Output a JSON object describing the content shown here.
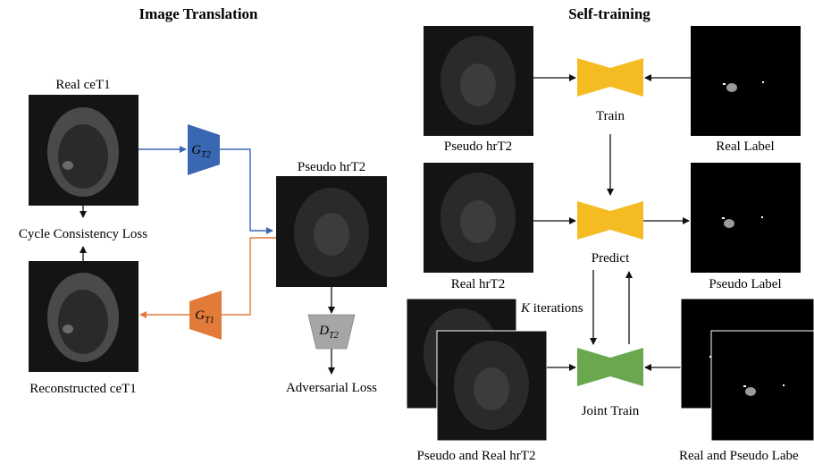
{
  "titles": {
    "left": "Image Translation",
    "right": "Self-training"
  },
  "left": {
    "real_cet1": "Real ceT1",
    "cycle_loss": "Cycle Consistency Loss",
    "reconstructed": "Reconstructed ceT1",
    "pseudo_hrt2": "Pseudo hrT2",
    "adversarial_loss": "Adversarial Loss",
    "gen_t2": {
      "main": "G",
      "sub": "T2"
    },
    "gen_t1": {
      "main": "G",
      "sub": "T1"
    },
    "disc_t2": {
      "main": "D",
      "sub": "T2"
    }
  },
  "right": {
    "pseudo_hrt2": "Pseudo hrT2",
    "train": "Train",
    "real_label": "Real Label",
    "real_hrt2": "Real hrT2",
    "predict": "Predict",
    "pseudo_label": "Pseudo Label",
    "iterations_k": "K",
    "iterations_text": " iterations",
    "joint_train": "Joint Train",
    "pseudo_and_real": "Pseudo and Real hrT2",
    "real_and_pseudo_label": "Real and Pseudo Labe"
  },
  "colors": {
    "gen_t2": "#3a67b1",
    "gen_t1": "#e27a3a",
    "disc": "#a6a6a6",
    "seg": "#f5bb22",
    "joint": "#6aa84f",
    "blue_arrow": "#3a67b1",
    "orange_arrow": "#e27a3a"
  }
}
